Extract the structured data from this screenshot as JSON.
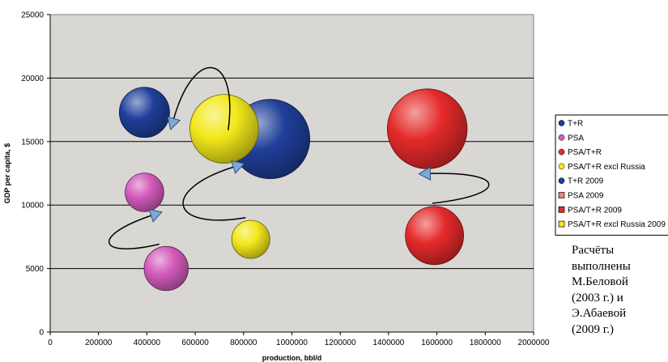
{
  "chart_data": {
    "type": "bubble",
    "xlabel": "production, bbl/d",
    "ylabel": "GDP per capita, $",
    "xlim": [
      0,
      2000000
    ],
    "ylim": [
      0,
      25000
    ],
    "x_ticks": [
      "0",
      "200000",
      "400000",
      "600000",
      "800000",
      "1000000",
      "1200000",
      "1400000",
      "1600000",
      "1800000",
      "2000000"
    ],
    "y_ticks": [
      "0",
      "5000",
      "10000",
      "15000",
      "20000",
      "25000"
    ],
    "grid": "horizontal",
    "plot_background": "#d9d7d4",
    "legend_position": "right",
    "legend": [
      {
        "label": "T+R",
        "color": "#1f3f9a",
        "marker": "circle"
      },
      {
        "label": "PSA",
        "color": "#d45bbb",
        "marker": "circle"
      },
      {
        "label": "PSA/T+R",
        "color": "#e52a2a",
        "marker": "circle"
      },
      {
        "label": "PSA/T+R excl Russia",
        "color": "#f2e81a",
        "marker": "circle"
      },
      {
        "label": "T+R 2009",
        "color": "#1f3f9a",
        "marker": "circle"
      },
      {
        "label": "PSA 2009",
        "color": "#f08080",
        "marker": "square"
      },
      {
        "label": "PSA/T+R 2009",
        "color": "#e52a2a",
        "marker": "square"
      },
      {
        "label": "PSA/T+R excl Russia 2009",
        "color": "#f2e81a",
        "marker": "square"
      }
    ],
    "series": [
      {
        "label": "T+R",
        "x": 390000,
        "y": 17300,
        "size": 1.0,
        "color": "#1f3f9a"
      },
      {
        "label": "PSA",
        "x": 390000,
        "y": 11000,
        "size": 0.77,
        "color": "#d45bbb"
      },
      {
        "label": "PSA/T+R",
        "x": 1590000,
        "y": 7600,
        "size": 1.16,
        "color": "#e52a2a"
      },
      {
        "label": "PSA/T+R excl Russia",
        "x": 830000,
        "y": 7300,
        "size": 0.76,
        "color": "#f2e81a"
      },
      {
        "label": "T+R 2009",
        "x": 910000,
        "y": 15200,
        "size": 1.58,
        "color": "#1f3f9a"
      },
      {
        "label": "PSA 2009",
        "x": 480000,
        "y": 5000,
        "size": 0.88,
        "color": "#d45bbb"
      },
      {
        "label": "PSA/T+R 2009",
        "x": 1560000,
        "y": 16000,
        "size": 1.59,
        "color": "#e52a2a"
      },
      {
        "label": "PSA/T+R excl Russia 2009",
        "x": 720000,
        "y": 16000,
        "size": 1.37,
        "color": "#f2e81a"
      }
    ],
    "transitions": [
      {
        "from": "T+R 2009",
        "to": "T+R"
      },
      {
        "from": "PSA 2009",
        "to": "PSA"
      },
      {
        "from": "PSA/T+R excl Russia",
        "to": "PSA/T+R excl Russia 2009"
      },
      {
        "from": "PSA/T+R",
        "to": "PSA/T+R 2009"
      }
    ]
  },
  "note_lines": [
    "Расчёты",
    "выполнены",
    "М.Беловой",
    "(2003 г.) и",
    "Э.Абаевой",
    "(2009 г.)"
  ]
}
